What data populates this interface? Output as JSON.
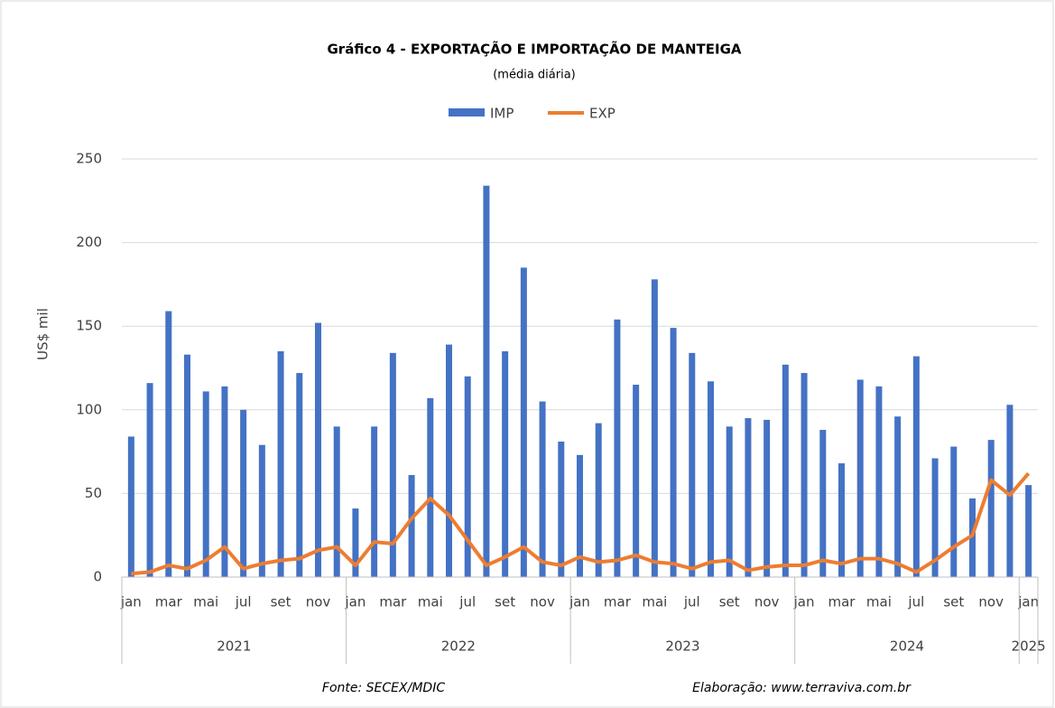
{
  "chart_data": {
    "type": "bar_line",
    "title": "Gráfico 4 - EXPORTAÇÃO E IMPORTAÇÃO  DE MANTEIGA",
    "subtitle": "(média diária)",
    "y_label": "US$ mil",
    "source": "Fonte: SECEX/MDIC",
    "credit": "Elaboração: www.terraviva.com.br",
    "categories": [
      "jan",
      null,
      "mar",
      null,
      "mai",
      null,
      "jul",
      null,
      "set",
      null,
      "nov",
      null,
      "jan",
      null,
      "mar",
      null,
      "mai",
      null,
      "jul",
      null,
      "set",
      null,
      "nov",
      null,
      "jan",
      null,
      "mar",
      null,
      "mai",
      null,
      "jul",
      null,
      "set",
      null,
      "nov",
      null,
      "jan",
      null,
      "mar",
      null,
      "mai",
      null,
      "jul",
      null,
      "set",
      null,
      "nov",
      null,
      "jan"
    ],
    "years": [
      "2021",
      "2022",
      "2023",
      "2024",
      "2025"
    ],
    "series": [
      {
        "name": "IMP",
        "type": "bar",
        "color": "#4472c4",
        "values": [
          84,
          116,
          159,
          133,
          111,
          114,
          100,
          79,
          135,
          122,
          152,
          90,
          41,
          90,
          134,
          61,
          107,
          139,
          120,
          234,
          135,
          185,
          105,
          81,
          73,
          92,
          154,
          115,
          178,
          149,
          134,
          117,
          90,
          95,
          94,
          127,
          122,
          88,
          68,
          118,
          114,
          96,
          132,
          71,
          78,
          47,
          82,
          103,
          55
        ]
      },
      {
        "name": "EXP",
        "type": "line",
        "color": "#ed7d31",
        "values": [
          2,
          3,
          7,
          5,
          10,
          18,
          5,
          8,
          10,
          11,
          16,
          18,
          7,
          21,
          20,
          35,
          47,
          37,
          22,
          7,
          12,
          18,
          9,
          7,
          12,
          9,
          10,
          13,
          9,
          8,
          5,
          9,
          10,
          4,
          6,
          7,
          7,
          10,
          8,
          11,
          11,
          8,
          3,
          10,
          18,
          25,
          58,
          49,
          62
        ]
      }
    ],
    "ylim": [
      0,
      250
    ],
    "yticks": [
      0,
      50,
      100,
      150,
      200,
      250
    ],
    "grid": true,
    "legend": "top"
  }
}
